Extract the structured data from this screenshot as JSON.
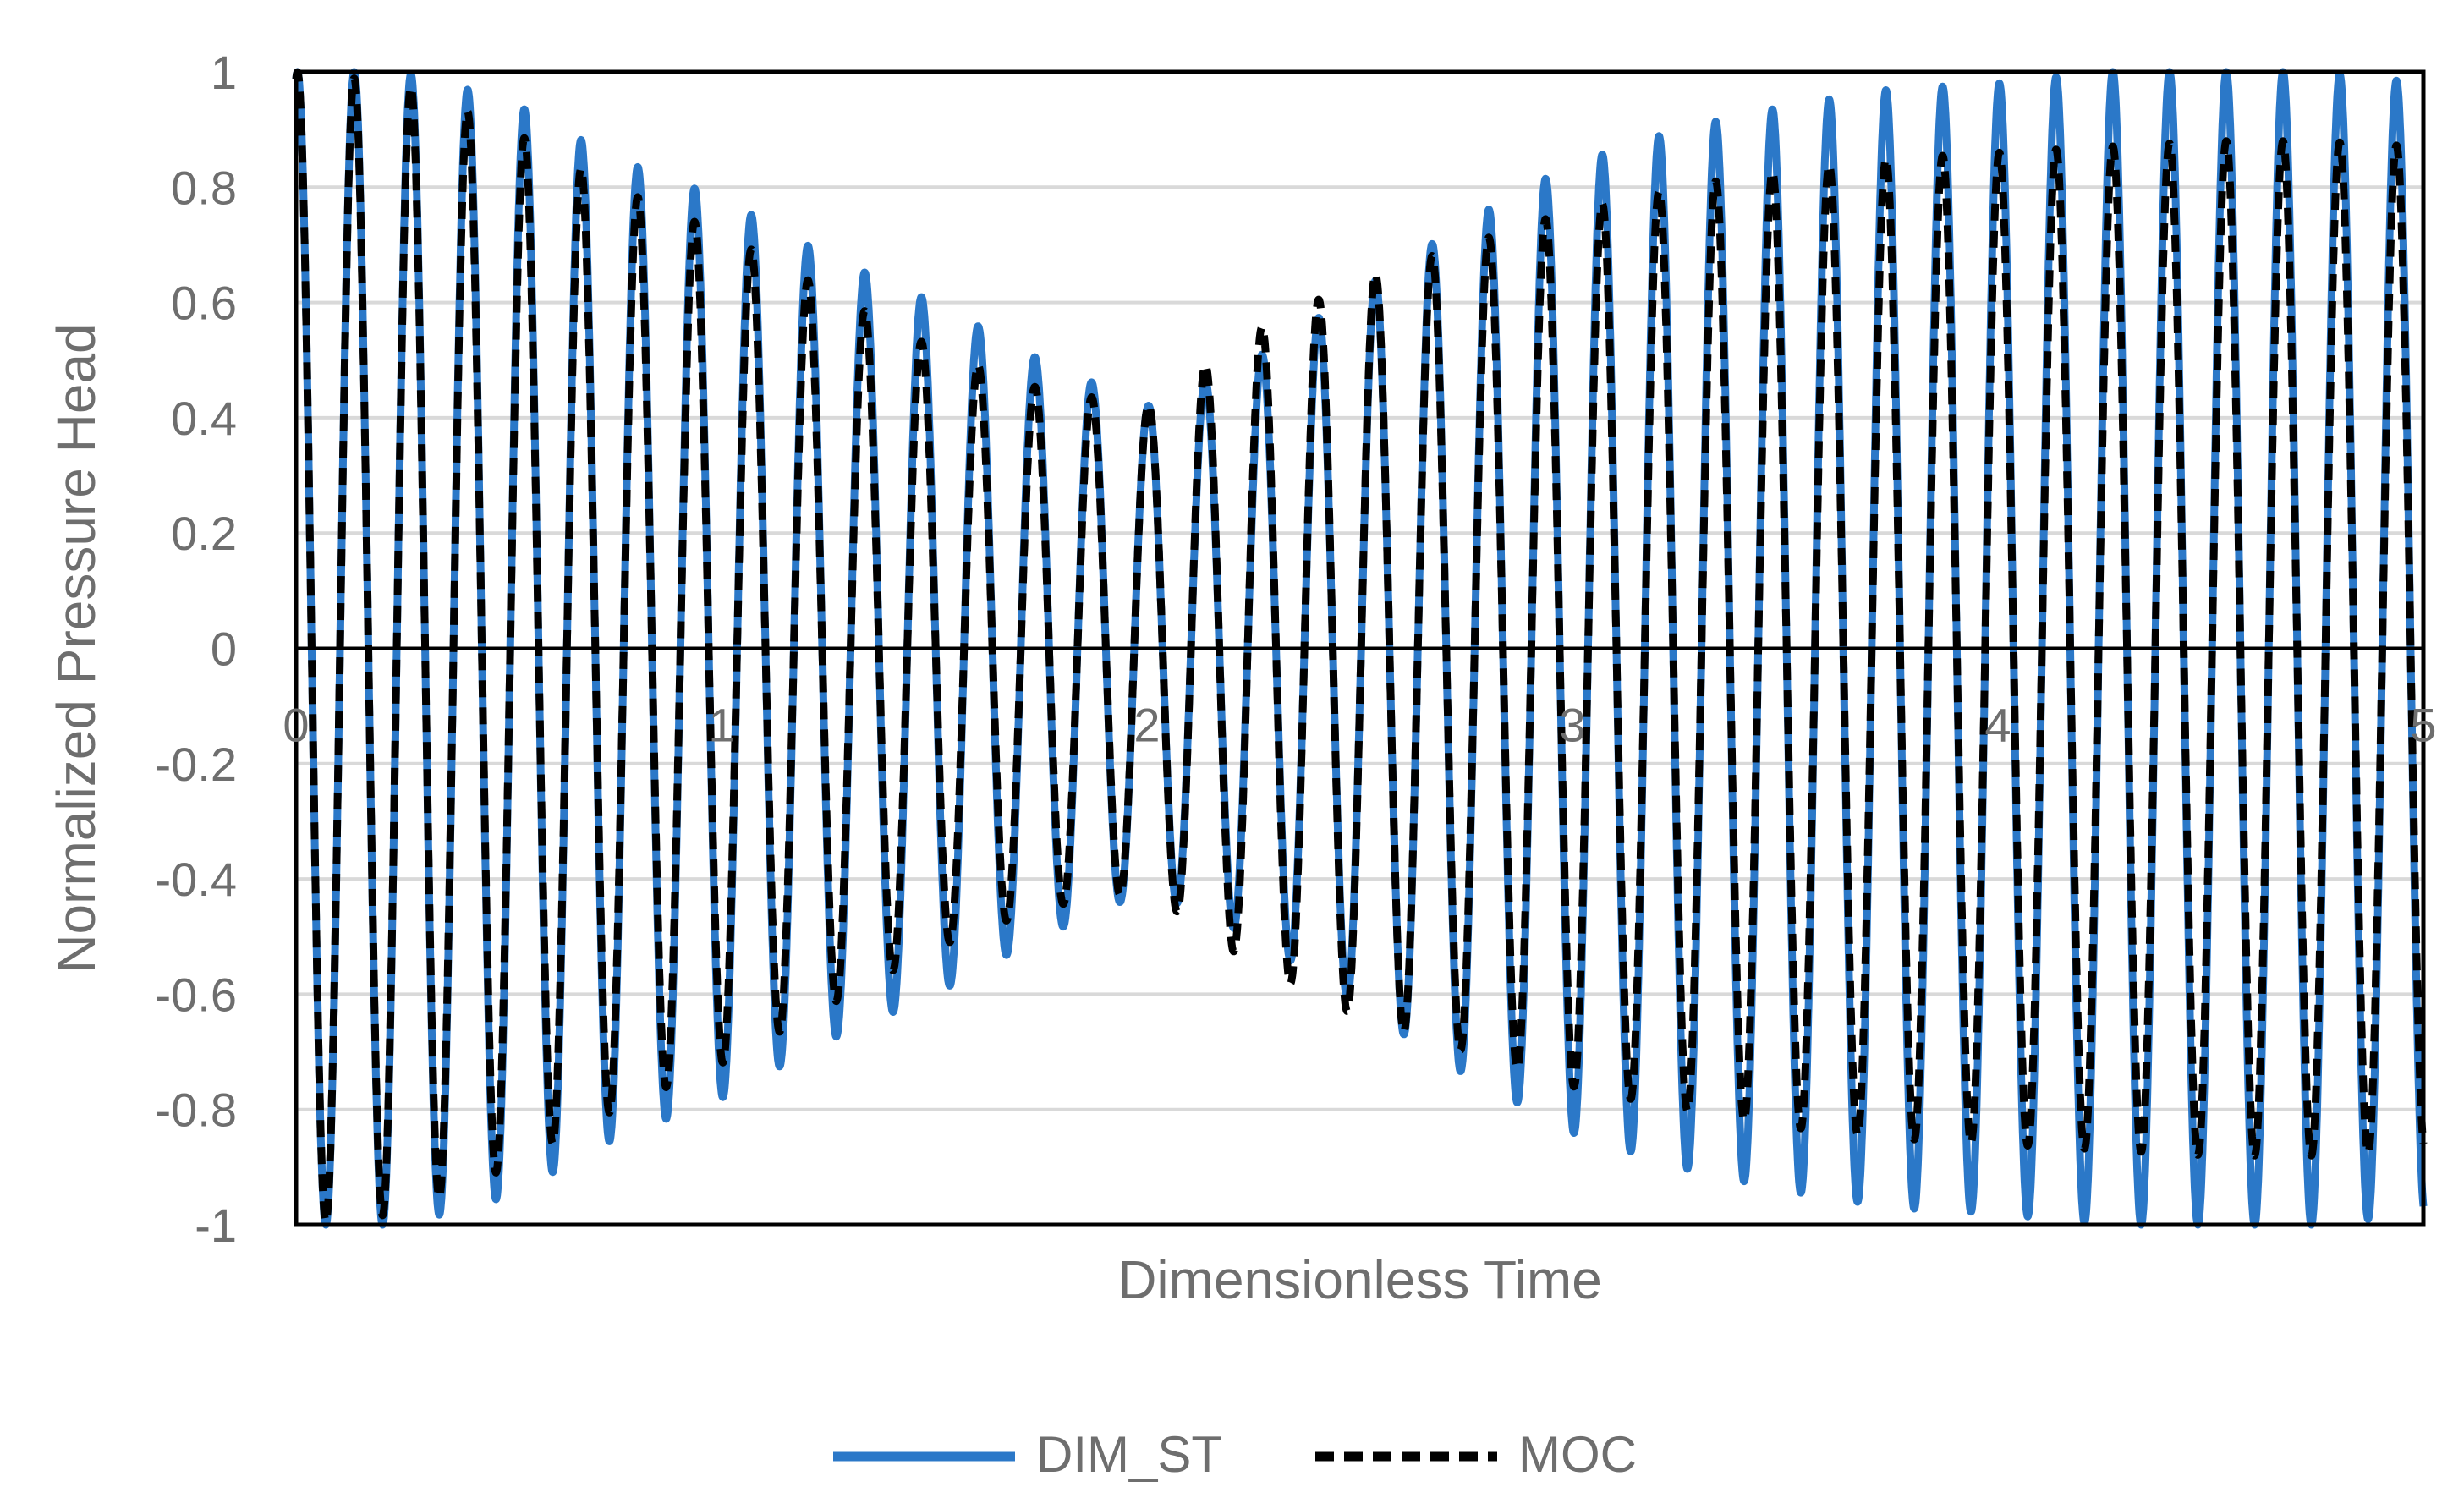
{
  "chart_data": {
    "type": "line",
    "title": "",
    "xlabel": "Dimensionless Time",
    "ylabel": "Normalized Pressure Head",
    "xlim": [
      0,
      5
    ],
    "ylim": [
      -1,
      1
    ],
    "x_ticks": [
      "0",
      "1",
      "2",
      "3",
      "4",
      "5"
    ],
    "y_ticks": [
      "1",
      "0.8",
      "0.6",
      "0.4",
      "0.2",
      "0",
      "-0.2",
      "-0.4",
      "-0.6",
      "-0.8",
      "-1"
    ],
    "grid": "horizontal",
    "legend_position": "bottom-center",
    "frequency_hz_per_time_unit": 7.5,
    "series": [
      {
        "name": "DIM_ST",
        "color": "#2b78c8",
        "style": "solid",
        "x": [
          0,
          0.25,
          0.5,
          0.75,
          1.0,
          1.25,
          1.5,
          1.75,
          2.0,
          2.25,
          2.5,
          2.75,
          3.0,
          3.25,
          3.5,
          3.75,
          4.0,
          4.25,
          4.5,
          4.75,
          5.0
        ],
        "envelope": [
          1.0,
          1.0,
          0.95,
          0.85,
          0.78,
          0.68,
          0.6,
          0.5,
          0.42,
          0.5,
          0.62,
          0.74,
          0.84,
          0.9,
          0.94,
          0.97,
          0.98,
          1.0,
          1.0,
          1.0,
          0.98
        ]
      },
      {
        "name": "MOC",
        "color": "#000000",
        "style": "dashed",
        "x": [
          0,
          0.25,
          0.5,
          0.75,
          1.0,
          1.25,
          1.5,
          1.75,
          2.0,
          2.25,
          2.5,
          2.75,
          3.0,
          3.25,
          3.5,
          3.75,
          4.0,
          4.25,
          4.5,
          4.75,
          5.0
        ],
        "envelope": [
          1.0,
          0.98,
          0.9,
          0.8,
          0.72,
          0.62,
          0.52,
          0.45,
          0.42,
          0.55,
          0.64,
          0.7,
          0.76,
          0.8,
          0.83,
          0.85,
          0.86,
          0.87,
          0.88,
          0.88,
          0.87
        ]
      }
    ]
  }
}
